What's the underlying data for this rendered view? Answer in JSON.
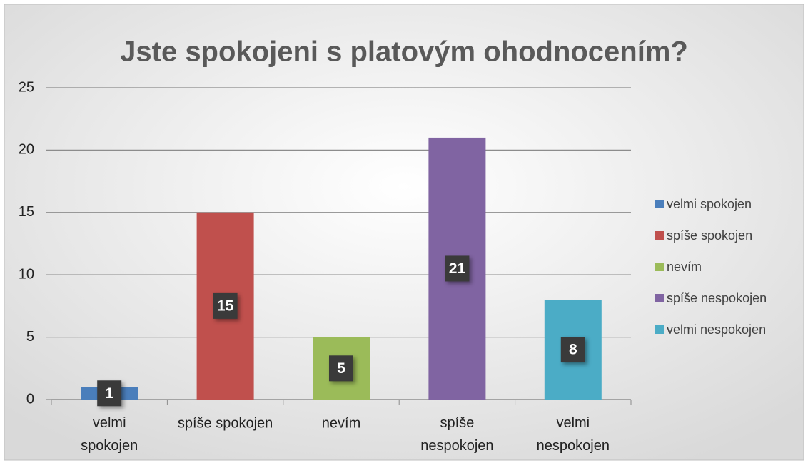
{
  "chart_data": {
    "type": "bar",
    "title": "Jste spokojeni s platovým ohodnocením?",
    "categories": [
      "velmi spokojen",
      "spíše spokojen",
      "nevím",
      "spíše nespokojen",
      "velmi nespokojen"
    ],
    "values": [
      1,
      15,
      5,
      21,
      8
    ],
    "colors": [
      "#4a7ebb",
      "#c0504d",
      "#9bbb59",
      "#8064a2",
      "#4bacc6"
    ],
    "ylim": [
      0,
      25
    ],
    "yticks": [
      0,
      5,
      10,
      15,
      20,
      25
    ],
    "grid": true,
    "legend": "right"
  }
}
